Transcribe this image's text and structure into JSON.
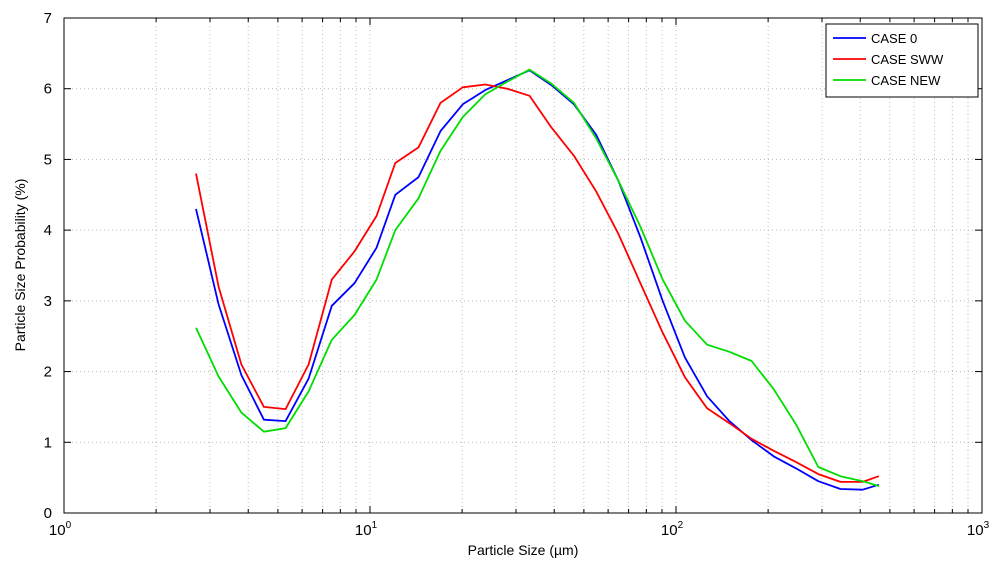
{
  "chart_data": {
    "type": "line",
    "title": "",
    "xlabel": "Particle Size (µm)",
    "ylabel": "Particle Size Probability (%)",
    "xscale": "log",
    "xlim": [
      1,
      1000
    ],
    "ylim": [
      0,
      7
    ],
    "grid": true,
    "legend_position": "top-right",
    "x_tick_labels": [
      {
        "base": "10",
        "exp": "0",
        "value": 1
      },
      {
        "base": "10",
        "exp": "1",
        "value": 10
      },
      {
        "base": "10",
        "exp": "2",
        "value": 100
      },
      {
        "base": "10",
        "exp": "3",
        "value": 1000
      }
    ],
    "y_ticks": [
      "0",
      "1",
      "2",
      "3",
      "4",
      "5",
      "6",
      "7"
    ],
    "series": [
      {
        "name": "CASE 0",
        "color": "#0000ff",
        "x": [
          2.7,
          3.2,
          3.8,
          4.5,
          5.3,
          6.3,
          7.5,
          8.9,
          10.5,
          12.1,
          14.4,
          17.0,
          20.1,
          23.8,
          28.1,
          33.2,
          39.2,
          46.4,
          54.8,
          64.8,
          76.5,
          90.5,
          106.9,
          126.4,
          149.4,
          176.6,
          208.7,
          246.8,
          291.7,
          344.8,
          407.6,
          460.0
        ],
        "y": [
          4.3,
          2.95,
          1.95,
          1.32,
          1.3,
          1.9,
          2.93,
          3.25,
          3.75,
          4.5,
          4.75,
          5.4,
          5.78,
          5.98,
          6.12,
          6.26,
          6.05,
          5.78,
          5.35,
          4.7,
          3.9,
          3.0,
          2.2,
          1.65,
          1.3,
          1.03,
          0.8,
          0.63,
          0.45,
          0.34,
          0.33,
          0.4
        ]
      },
      {
        "name": "CASE SWW",
        "color": "#ff0000",
        "x": [
          2.7,
          3.2,
          3.8,
          4.5,
          5.3,
          6.3,
          7.5,
          8.9,
          10.5,
          12.1,
          14.4,
          17.0,
          20.1,
          23.8,
          28.1,
          33.2,
          39.2,
          46.4,
          54.8,
          64.8,
          76.5,
          90.5,
          106.9,
          126.4,
          149.4,
          176.6,
          208.7,
          246.8,
          291.7,
          344.8,
          407.6,
          460.0
        ],
        "y": [
          4.8,
          3.2,
          2.1,
          1.5,
          1.47,
          2.1,
          3.3,
          3.7,
          4.2,
          4.95,
          5.17,
          5.8,
          6.02,
          6.06,
          6.0,
          5.9,
          5.45,
          5.05,
          4.55,
          3.95,
          3.25,
          2.55,
          1.92,
          1.48,
          1.27,
          1.05,
          0.88,
          0.72,
          0.55,
          0.44,
          0.44,
          0.52
        ]
      },
      {
        "name": "CASE NEW",
        "color": "#00dd00",
        "x": [
          2.7,
          3.2,
          3.8,
          4.5,
          5.3,
          6.3,
          7.5,
          8.9,
          10.5,
          12.1,
          14.4,
          17.0,
          20.1,
          23.8,
          28.1,
          33.2,
          39.2,
          46.4,
          54.8,
          64.8,
          76.5,
          90.5,
          106.9,
          126.4,
          149.4,
          176.6,
          208.7,
          246.8,
          291.7,
          344.8,
          407.6,
          460.0
        ],
        "y": [
          2.62,
          1.93,
          1.42,
          1.15,
          1.2,
          1.72,
          2.45,
          2.8,
          3.3,
          4.0,
          4.45,
          5.12,
          5.6,
          5.92,
          6.1,
          6.27,
          6.07,
          5.8,
          5.3,
          4.7,
          4.05,
          3.3,
          2.72,
          2.38,
          2.28,
          2.15,
          1.75,
          1.25,
          0.65,
          0.52,
          0.45,
          0.38
        ]
      }
    ]
  }
}
